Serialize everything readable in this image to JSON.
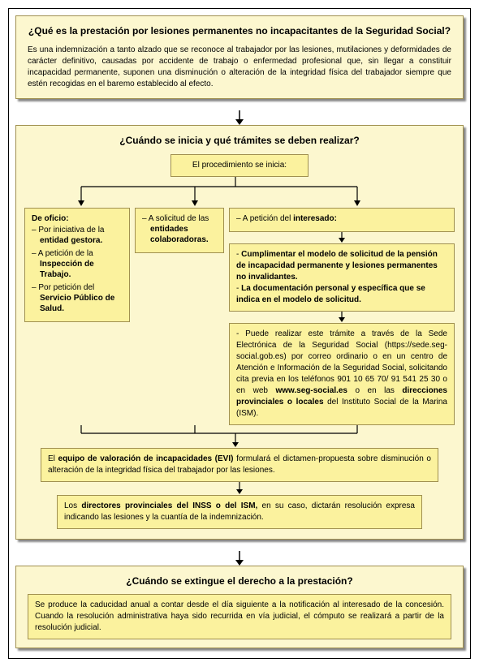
{
  "colors": {
    "box_bg": "#fcf7cf",
    "inner_bg": "#fbf29e",
    "border": "#a09050",
    "shadow": "#888888",
    "text": "#000000"
  },
  "section1": {
    "title": "¿Qué es la prestación por lesiones permanentes no incapacitantes de la Seguridad Social?",
    "body": "Es una indemnización a tanto alzado que se reconoce al trabajador por las lesiones, mutilaciones y deformidades de carácter definitivo, causadas por accidente de trabajo o enfermedad profesional que, sin llegar a constituir incapacidad permanente, suponen una disminución o alteración de la integridad física del trabajador siempre que estén recogidas en el baremo establecido al efecto."
  },
  "section2": {
    "title": "¿Cuándo se inicia y qué trámites se deben realizar?",
    "start_box": "El procedimiento se inicia:",
    "col1": {
      "header": "De oficio:",
      "items_html": [
        "Por iniciativa de la <span class='b'>entidad gestora.</span>",
        "A petición de la <span class='b'>Inspección de Trabajo.</span>",
        "Por petición del <span class='b'>Servicio Público de Salud.</span>"
      ]
    },
    "col2": {
      "items_html": [
        "A solicitud de las <span class='b'>entidades colaboradoras.</span>"
      ]
    },
    "col3": {
      "header_html": "A petición del <span class='b'>interesado:</span>",
      "box1_html": "- <span class='b'>Cumplimentar el modelo de solicitud de la pensión de incapacidad permanente y lesiones permanentes no invalidantes.</span><br>- <span class='b'>La documentación personal y específica que se indica en el modelo de solicitud.</span>",
      "box2_html": "- Puede realizar este trámite a través de la Sede Electrónica de la Seguridad Social (https://sede.seg-social.gob.es) por correo ordinario o en un centro de Atención e Información de la Seguridad Social, solicitando cita previa en los teléfonos 901 10 65 70/ 91 541 25 30 o en web <span class='b'>www.seg-social.es</span> o en las <span class='b'>direcciones provinciales o locales</span> del Instituto Social de la Marina (ISM)."
    },
    "evi_html": "El <span class='b'>equipo de valoración de incapacidades (EVI)</span> formulará el dictamen-propuesta sobre disminución o alteración de la integridad física del trabajador por las lesiones.",
    "directores_html": "Los <span class='b'>directores provinciales del INSS o del ISM,</span> en su caso, dictarán resolución expresa indicando las lesiones y la cuantía de la indemnización."
  },
  "section3": {
    "title": "¿Cuándo se extingue el derecho a la prestación?",
    "body": "Se produce la caducidad anual a contar desde el día siguiente a la notificación al interesado de la concesión. Cuando la resolución administrativa haya sido recurrida en vía judicial, el cómputo se realizará a partir de la resolución judicial."
  }
}
